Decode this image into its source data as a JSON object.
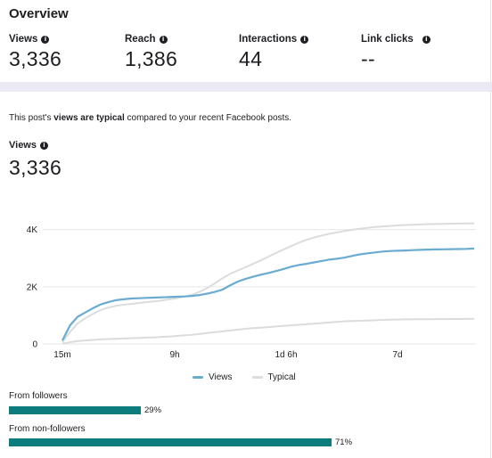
{
  "overview": {
    "title": "Overview",
    "metrics": [
      {
        "label": "Views",
        "value": "3,336"
      },
      {
        "label": "Reach",
        "value": "1,386"
      },
      {
        "label": "Interactions",
        "value": "44"
      },
      {
        "label": "Link clicks",
        "value": "--"
      }
    ]
  },
  "summary": {
    "prefix": "This post's ",
    "bold": "views are typical",
    "suffix": " compared to your recent Facebook posts."
  },
  "views_section": {
    "label": "Views",
    "value": "3,336"
  },
  "chart_data": {
    "type": "line",
    "y_ticks": [
      "4K",
      "2K",
      "0"
    ],
    "y_tick_values": [
      4000,
      2000,
      0
    ],
    "x_ticks": [
      "15m",
      "9h",
      "1d 6h",
      "7d"
    ],
    "ylim": [
      0,
      4300
    ],
    "grid": true,
    "legend_position": "bottom",
    "series": [
      {
        "name": "Views",
        "color": "#6aabd2",
        "values": [
          120,
          650,
          950,
          1100,
          1250,
          1380,
          1460,
          1530,
          1560,
          1590,
          1600,
          1610,
          1620,
          1630,
          1640,
          1650,
          1660,
          1680,
          1710,
          1760,
          1820,
          1900,
          2050,
          2180,
          2270,
          2350,
          2420,
          2480,
          2550,
          2620,
          2700,
          2760,
          2800,
          2850,
          2900,
          2950,
          2980,
          3020,
          3080,
          3130,
          3170,
          3200,
          3230,
          3250,
          3260,
          3270,
          3280,
          3290,
          3300,
          3305,
          3310,
          3315,
          3320,
          3325,
          3336
        ]
      },
      {
        "name": "Typical",
        "color": "#dcdcdc",
        "upper": [
          60,
          420,
          720,
          900,
          1050,
          1180,
          1270,
          1330,
          1370,
          1400,
          1430,
          1460,
          1490,
          1520,
          1560,
          1600,
          1650,
          1720,
          1820,
          1960,
          2120,
          2300,
          2450,
          2570,
          2680,
          2800,
          2920,
          3050,
          3180,
          3300,
          3420,
          3540,
          3640,
          3720,
          3790,
          3850,
          3900,
          3950,
          3990,
          4030,
          4060,
          4090,
          4110,
          4130,
          4145,
          4160,
          4170,
          4180,
          4190,
          4195,
          4200,
          4205,
          4210,
          4215,
          4220
        ],
        "lower": [
          10,
          60,
          100,
          120,
          140,
          160,
          170,
          180,
          190,
          200,
          210,
          220,
          230,
          245,
          260,
          280,
          300,
          320,
          350,
          380,
          410,
          440,
          470,
          500,
          530,
          550,
          570,
          590,
          610,
          630,
          650,
          670,
          690,
          710,
          730,
          750,
          770,
          790,
          800,
          810,
          820,
          830,
          840,
          850,
          855,
          860,
          862,
          864,
          866,
          868,
          870,
          872,
          874,
          876,
          878
        ]
      }
    ]
  },
  "distribution": [
    {
      "label": "From followers",
      "percent": 29,
      "pct_text": "29%"
    },
    {
      "label": "From non-followers",
      "percent": 71,
      "pct_text": "71%"
    }
  ]
}
